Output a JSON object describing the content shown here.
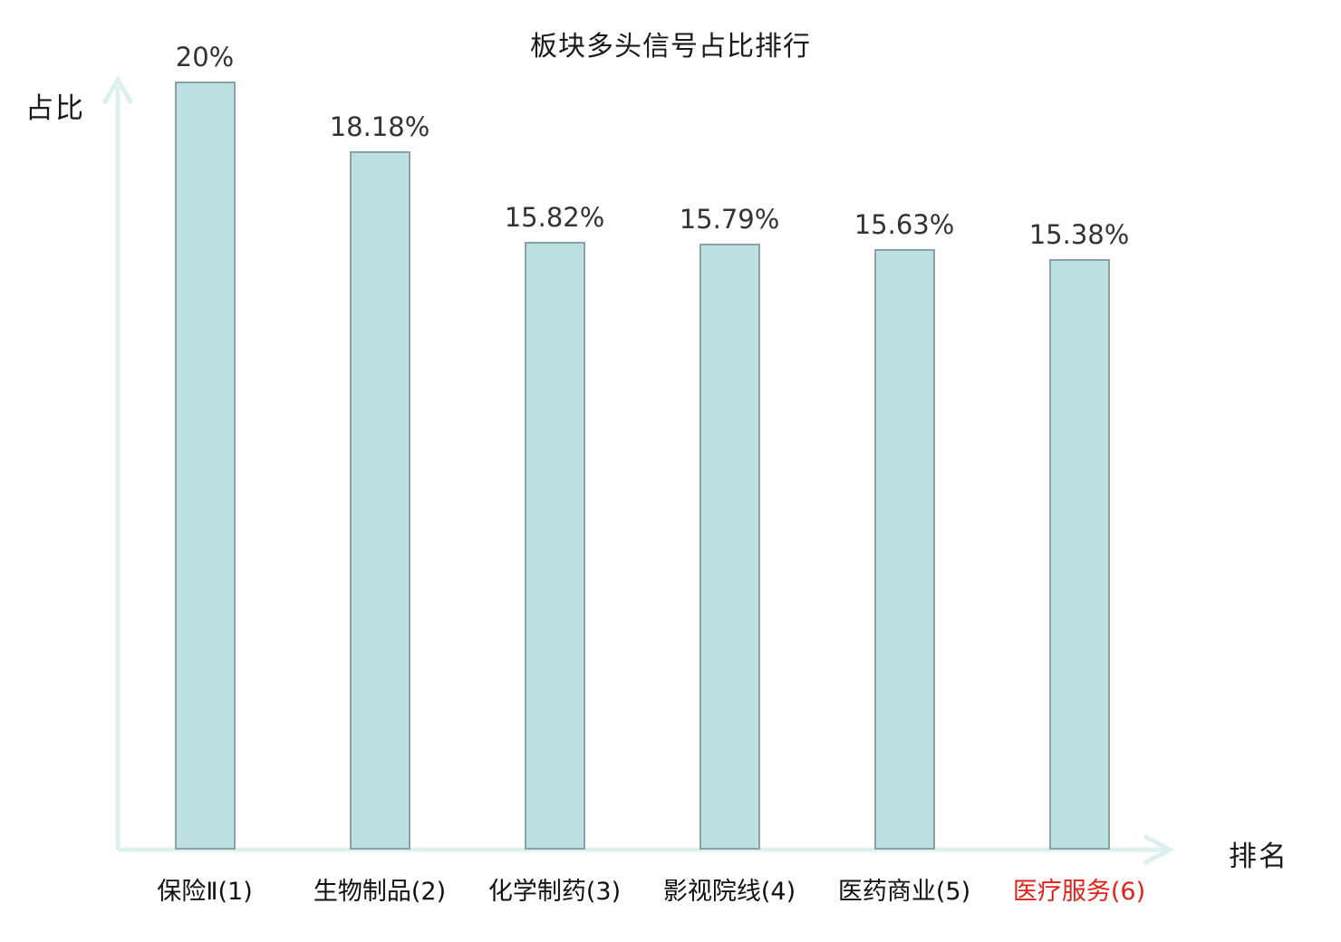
{
  "title": "板块多头信号占比排行",
  "chart_data": {
    "type": "bar",
    "title": "板块多头信号占比排行",
    "categories": [
      "保险Ⅱ(1)",
      "生物制品(2)",
      "化学制药(3)",
      "影视院线(4)",
      "医药商业(5)",
      "医疗服务(6)"
    ],
    "values": [
      20,
      18.18,
      15.82,
      15.79,
      15.63,
      15.38
    ],
    "value_labels": [
      "20%",
      "18.18%",
      "15.82%",
      "15.79%",
      "15.63%",
      "15.38%"
    ],
    "xlabel": "排名",
    "ylabel": "占比",
    "ylim": [
      0,
      20
    ],
    "grid": false,
    "legend": null,
    "highlight_category_index": 5,
    "colors": {
      "bar_fill": "#bde0e3",
      "bar_border": "#8aa1a8",
      "axis": "#ddf0ee",
      "value_text": "#333333",
      "category_text": "#111111",
      "highlight_text": "#e2221a",
      "background": "#ffffff"
    }
  }
}
